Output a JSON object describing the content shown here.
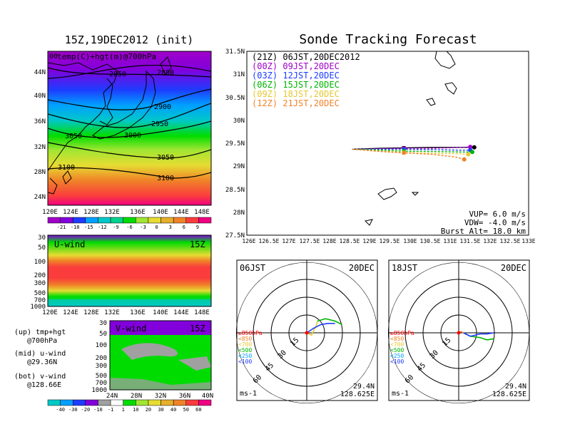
{
  "left": {
    "title": "15Z,19DEC2012 (init)",
    "map_label": "temp(C)+hgt(m)@700hPa",
    "corner_label": "00",
    "lon_ticks": [
      "120E",
      "124E",
      "128E",
      "132E",
      "136E",
      "140E",
      "144E",
      "148E"
    ],
    "lat_ticks": [
      "44N",
      "40N",
      "36N",
      "32N",
      "28N",
      "24N"
    ],
    "contours": [
      "2850",
      "2800",
      "2900",
      "2950",
      "3000",
      "3050",
      "3050",
      "3100",
      "3100"
    ],
    "temp_scale": [
      "-21",
      "-18",
      "-15",
      "-12",
      "-9",
      "-6",
      "-3",
      "0",
      "3",
      "6",
      "9"
    ],
    "temp_colors": [
      "#a000c8",
      "#8200dc",
      "#1e3cff",
      "#00a0ff",
      "#00c8c8",
      "#00d28c",
      "#00dc00",
      "#a0e632",
      "#e6dc32",
      "#e6af2d",
      "#f08228",
      "#fa3c3c",
      "#f00082"
    ],
    "uwind": {
      "label": "U-wind",
      "time": "15Z",
      "p_ticks": [
        "30",
        "50",
        "100",
        "200",
        "300",
        "500",
        "700",
        "1000"
      ],
      "lon_ticks": [
        "120E",
        "124E",
        "128E",
        "132E",
        "136E",
        "140E",
        "144E",
        "148E"
      ]
    },
    "vwind": {
      "label": "V-wind",
      "time": "15Z",
      "p_ticks": [
        "30",
        "50",
        "100",
        "200",
        "300",
        "500",
        "700",
        "1000"
      ],
      "lat_ticks": [
        "24N",
        "28N",
        "32N",
        "36N",
        "40N"
      ]
    },
    "notes": [
      "(up) tmp+hgt",
      "@700hPa",
      "(mid) u-wind",
      "@29.36N",
      "(bot) v-wind",
      "@128.66E"
    ],
    "wind_scale": [
      "-40",
      "-30",
      "-20",
      "-10",
      "-1",
      "1",
      "10",
      "20",
      "30",
      "40",
      "50",
      "60"
    ],
    "wind_colors": [
      "#00c8c8",
      "#00a0ff",
      "#1e3cff",
      "#8200dc",
      "#a0a0a0",
      "#ffffff",
      "#00dc00",
      "#a0e632",
      "#e6dc32",
      "#e6af2d",
      "#f08228",
      "#fa3c3c",
      "#f00082"
    ]
  },
  "right": {
    "title": "Sonde Tracking Forecast",
    "legend": [
      {
        "text": "(21Z) 06JST,20DEC2012",
        "color": "#000000"
      },
      {
        "text": "(00Z) 09JST,20DEC",
        "color": "#a000c8"
      },
      {
        "text": "(03Z) 12JST,20DEC",
        "color": "#1e3cff"
      },
      {
        "text": "(06Z) 15JST,20DEC",
        "color": "#00b400"
      },
      {
        "text": "(09Z) 18JST,20DEC",
        "color": "#e6c832"
      },
      {
        "text": "(12Z) 21JST,20DEC",
        "color": "#f08228"
      }
    ],
    "lat_ticks": [
      "31.5N",
      "31N",
      "30.5N",
      "30N",
      "29.5N",
      "29N",
      "28.5N",
      "28N",
      "27.5N"
    ],
    "lon_ticks": [
      "126E",
      "126.5E",
      "127E",
      "127.5E",
      "128E",
      "128.5E",
      "129E",
      "129.5E",
      "130E",
      "130.5E",
      "131E",
      "131.5E",
      "132E",
      "132.5E",
      "133E"
    ],
    "params": [
      "VUP=  6.0 m/s",
      "VDW= -4.0 m/s",
      "Burst Alt= 18.0 km"
    ]
  },
  "chart_data": [
    {
      "type": "line",
      "title": "Sonde Tracking Forecast",
      "xlim": [
        126,
        133
      ],
      "ylim": [
        27.5,
        31.5
      ],
      "series": [
        {
          "name": "(21Z) 06JST,20DEC2012",
          "color": "#000000",
          "x": [
            128.62,
            129.3,
            129.9,
            130.6,
            131.3,
            131.65
          ],
          "y": [
            29.37,
            29.39,
            29.4,
            29.41,
            29.41,
            29.41
          ]
        },
        {
          "name": "(00Z) 09JST,20DEC",
          "color": "#a000c8",
          "x": [
            128.62,
            129.3,
            129.9,
            130.6,
            131.3,
            131.55
          ],
          "y": [
            29.37,
            29.38,
            29.39,
            29.39,
            29.41,
            29.42
          ]
        },
        {
          "name": "(03Z) 12JST,20DEC",
          "color": "#1e3cff",
          "x": [
            128.62,
            129.3,
            129.9,
            130.6,
            131.3,
            131.55
          ],
          "y": [
            29.37,
            29.37,
            29.37,
            29.36,
            29.35,
            29.35
          ]
        },
        {
          "name": "(06Z) 15JST,20DEC",
          "color": "#00b400",
          "x": [
            128.62,
            129.3,
            129.9,
            130.6,
            131.3,
            131.6
          ],
          "y": [
            29.37,
            29.35,
            29.33,
            29.32,
            29.31,
            29.31
          ]
        },
        {
          "name": "(09Z) 18JST,20DEC",
          "color": "#e6c832",
          "x": [
            128.62,
            129.3,
            129.9,
            130.6,
            131.3,
            131.5
          ],
          "y": [
            29.37,
            29.33,
            29.3,
            29.28,
            29.27,
            29.26
          ]
        },
        {
          "name": "(12Z) 21JST,20DEC",
          "color": "#f08228",
          "x": [
            128.62,
            129.3,
            129.9,
            130.6,
            131.2,
            131.4
          ],
          "y": [
            29.37,
            29.32,
            29.29,
            29.26,
            29.2,
            29.15
          ]
        }
      ]
    },
    {
      "type": "line",
      "title": "06JST",
      "date": "20DEC",
      "ring_labels": [
        "15",
        "30",
        "45",
        "60"
      ],
      "pressure_legend": [
        {
          "text": "≥850hPa",
          "color": "#ff0000"
        },
        {
          "text": "<850",
          "color": "#f08228"
        },
        {
          "text": "<700",
          "color": "#e6c832"
        },
        {
          "text": "<500",
          "color": "#00b400"
        },
        {
          "text": "<250",
          "color": "#00a0ff"
        },
        {
          "text": "<100",
          "color": "#1e3cff"
        }
      ],
      "units": "ms-1",
      "location": [
        "29.4N",
        "128.625E"
      ],
      "hodograph": [
        {
          "color": "#ff0000",
          "u": [
            0,
            -1
          ],
          "v": [
            0,
            -1
          ]
        },
        {
          "color": "#e6c832",
          "u": [
            0,
            4,
            8,
            9
          ],
          "v": [
            0,
            -2,
            6,
            10
          ]
        },
        {
          "color": "#00b400",
          "u": [
            9,
            16,
            24,
            30
          ],
          "v": [
            10,
            12,
            10,
            7
          ]
        },
        {
          "color": "#1e3cff",
          "u": [
            0,
            6,
            12,
            18,
            24
          ],
          "v": [
            0,
            4,
            7,
            8,
            8
          ]
        }
      ]
    },
    {
      "type": "line",
      "title": "18JST",
      "date": "20DEC",
      "ring_labels": [
        "15",
        "30",
        "45",
        "60"
      ],
      "pressure_legend": [
        {
          "text": "≥850hPa",
          "color": "#ff0000"
        },
        {
          "text": "<850",
          "color": "#f08228"
        },
        {
          "text": "<700",
          "color": "#e6c832"
        },
        {
          "text": "<500",
          "color": "#00b400"
        },
        {
          "text": "<250",
          "color": "#00a0ff"
        },
        {
          "text": "<100",
          "color": "#1e3cff"
        }
      ],
      "units": "ms-1",
      "location": [
        "29.4N",
        "128.625E"
      ],
      "hodograph": [
        {
          "color": "#ff0000",
          "u": [
            0,
            -1
          ],
          "v": [
            0,
            0
          ]
        },
        {
          "color": "#f08228",
          "u": [
            0,
            2,
            4
          ],
          "v": [
            0,
            1,
            0
          ]
        },
        {
          "color": "#00b400",
          "u": [
            4,
            10,
            18,
            24,
            30
          ],
          "v": [
            0,
            -3,
            -4,
            -6,
            -5
          ]
        },
        {
          "color": "#1e3cff",
          "u": [
            4,
            10,
            18,
            24,
            30
          ],
          "v": [
            0,
            -3,
            -1,
            -1,
            0
          ]
        }
      ]
    }
  ]
}
